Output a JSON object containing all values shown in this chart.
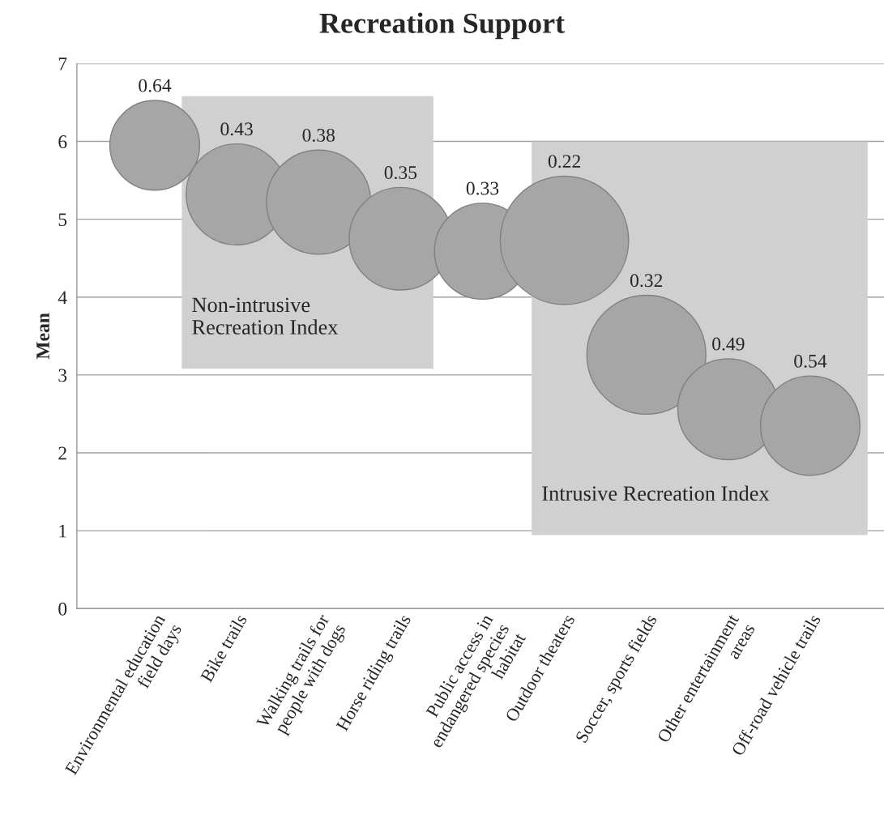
{
  "chart_data": {
    "type": "bubble",
    "title": "Recreation Support",
    "ylabel": "Mean",
    "categories": [
      "Environmental education\nfield days",
      "Bike trails",
      "Walking trails for\npeople with dogs",
      "Horse riding trails",
      "Public access in\nendangered species\nhabitat",
      "Outdoor theaters",
      "Soccer, sports fields",
      "Other entertainment\nareas",
      "Off-road vehicle trails"
    ],
    "values": [
      5.95,
      5.32,
      5.22,
      4.75,
      4.59,
      4.73,
      3.26,
      2.56,
      2.35
    ],
    "sizes": [
      0.49,
      0.62,
      0.66,
      0.64,
      0.56,
      1,
      0.86,
      0.62,
      0.6
    ],
    "color": "#a6a6a6",
    "annotations": [
      "0.64",
      "0.43",
      "0.38",
      "0.35",
      "0.33",
      "0.22",
      "0.32",
      "0.49",
      "0.54",
      "Non-intrusive\nRecreation Index",
      "Intrusive Recreation Index"
    ],
    "ylim": [
      0,
      7
    ],
    "yticks": [
      0,
      1,
      2,
      3,
      4,
      5,
      6,
      7
    ],
    "grid": "y",
    "legend": false
  }
}
